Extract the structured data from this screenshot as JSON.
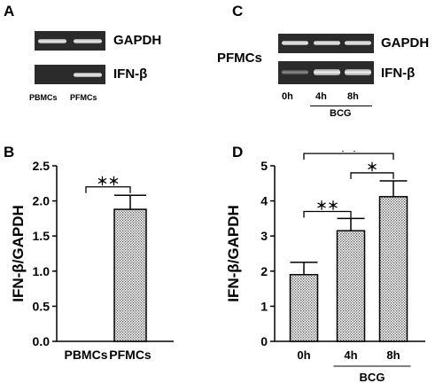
{
  "panels": {
    "a": {
      "letter": "A",
      "genes": [
        "GAPDH",
        "IFN-β"
      ],
      "lanes": [
        "PBMCs",
        "PFMCs"
      ],
      "bands": {
        "GAPDH": [
          1,
          1
        ],
        "IFN-β": [
          0,
          1
        ]
      }
    },
    "c": {
      "letter": "C",
      "sample": "PFMCs",
      "genes": [
        "GAPDH",
        "IFN-β"
      ],
      "lanes": [
        "0h",
        "4h",
        "8h"
      ],
      "treatment": "BCG",
      "bands": {
        "GAPDH": [
          1,
          1,
          1
        ],
        "IFN-β": [
          0.5,
          1,
          1
        ]
      }
    },
    "b": {
      "letter": "B"
    },
    "d": {
      "letter": "D"
    }
  },
  "chart_data": [
    {
      "type": "bar",
      "panel": "B",
      "categories": [
        "PBMCs",
        "PFMCs"
      ],
      "values": [
        0,
        1.88
      ],
      "errors": [
        0,
        0.2
      ],
      "ylabel": "IFN-β/GAPDH",
      "ylim": [
        0,
        2.5
      ],
      "yticks": [
        "0.0",
        "0.5",
        "1.0",
        "1.5",
        "2.0",
        "2.5"
      ],
      "significance": [
        {
          "from": 0,
          "to": 1,
          "label": "＊＊",
          "y": 2.2
        }
      ]
    },
    {
      "type": "bar",
      "panel": "D",
      "categories": [
        "0h",
        "4h",
        "8h"
      ],
      "values": [
        1.9,
        3.15,
        4.12
      ],
      "errors": [
        0.35,
        0.35,
        0.45
      ],
      "ylabel": "IFN-β/GAPDH",
      "ylim": [
        0,
        5
      ],
      "yticks": [
        "0",
        "1",
        "2",
        "3",
        "4",
        "5"
      ],
      "group_label": "BCG",
      "significance": [
        {
          "from": 0,
          "to": 1,
          "label": "＊＊",
          "y": 3.7
        },
        {
          "from": 1,
          "to": 2,
          "label": "＊",
          "y": 4.8
        },
        {
          "from": 0,
          "to": 2,
          "label": "＊＊",
          "y": 5.35
        }
      ]
    }
  ]
}
